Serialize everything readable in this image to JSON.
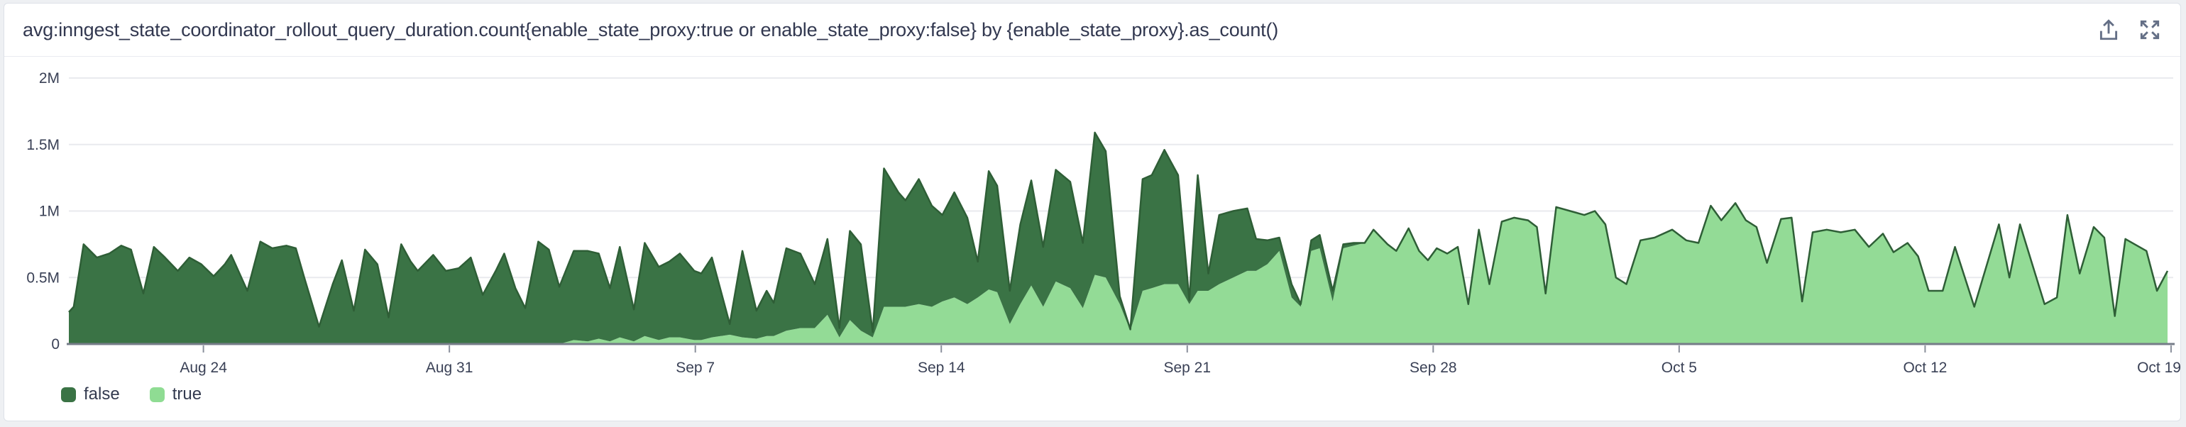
{
  "header": {
    "title": "avg:inngest_state_coordinator_rollout_query_duration.count{enable_state_proxy:true or enable_state_proxy:false} by {enable_state_proxy}.as_count()",
    "icons": [
      {
        "name": "export-icon"
      },
      {
        "name": "fullscreen-icon"
      }
    ]
  },
  "legend": {
    "items": [
      {
        "label": "false",
        "color": "#3a7345"
      },
      {
        "label": "true",
        "color": "#8fdc93"
      }
    ]
  },
  "chart_data": {
    "type": "area",
    "stacked": true,
    "title": "avg:inngest_state_coordinator_rollout_query_duration.count by enable_state_proxy",
    "xlabel": "",
    "ylabel": "",
    "x_unit": "date",
    "x_domain_days": [
      0.17,
      59.9
    ],
    "x_epoch_label": "day 0 = Aug 20",
    "x_ticks": {
      "days": [
        4,
        11,
        18,
        25,
        32,
        39,
        46,
        53,
        60
      ],
      "labels": [
        "Aug 24",
        "Aug 31",
        "Sep 7",
        "Sep 14",
        "Sep 21",
        "Sep 28",
        "Oct 5",
        "Oct 12",
        "Oct 19"
      ]
    },
    "ylim": [
      0,
      2000000
    ],
    "y_ticks": {
      "values": [
        0,
        500000,
        1000000,
        1500000,
        2000000
      ],
      "labels": [
        "0",
        "0.5M",
        "1M",
        "1.5M",
        "2M"
      ]
    },
    "grid": "horizontal",
    "legend_position": "bottom-left",
    "values_unit": "millions",
    "series_names": [
      "false",
      "true"
    ],
    "colors": {
      "false_fill": "#3a7345",
      "true_fill": "#93db96",
      "edge_stroke": "#2e5e36",
      "gridline": "#e9eaee",
      "axis_line": "#767c88",
      "axis_text": "#3a4156"
    },
    "points_format": "[day, false_value_M, true_value_M]",
    "points": [
      [
        0.17,
        0.24,
        0
      ],
      [
        0.31,
        0.28,
        0
      ],
      [
        0.59,
        0.75,
        0
      ],
      [
        0.97,
        0.65,
        0
      ],
      [
        1.32,
        0.68,
        0
      ],
      [
        1.66,
        0.74,
        0
      ],
      [
        1.94,
        0.71,
        0
      ],
      [
        2.29,
        0.38,
        0
      ],
      [
        2.59,
        0.73,
        0
      ],
      [
        2.87,
        0.66,
        0
      ],
      [
        3.27,
        0.55,
        0
      ],
      [
        3.6,
        0.65,
        0
      ],
      [
        3.94,
        0.6,
        0
      ],
      [
        4.29,
        0.51,
        0
      ],
      [
        4.61,
        0.6,
        0
      ],
      [
        4.79,
        0.67,
        0
      ],
      [
        5.25,
        0.4,
        0
      ],
      [
        5.62,
        0.77,
        0
      ],
      [
        5.96,
        0.72,
        0
      ],
      [
        6.36,
        0.74,
        0
      ],
      [
        6.63,
        0.72,
        0
      ],
      [
        6.87,
        0.5,
        0
      ],
      [
        7.29,
        0.13,
        0
      ],
      [
        7.68,
        0.45,
        0
      ],
      [
        7.94,
        0.63,
        0
      ],
      [
        8.28,
        0.25,
        0
      ],
      [
        8.6,
        0.71,
        0
      ],
      [
        8.95,
        0.6,
        0
      ],
      [
        9.27,
        0.2,
        0
      ],
      [
        9.63,
        0.75,
        0
      ],
      [
        9.9,
        0.62,
        0
      ],
      [
        10.1,
        0.55,
        0
      ],
      [
        10.54,
        0.67,
        0
      ],
      [
        10.9,
        0.55,
        0
      ],
      [
        11.27,
        0.57,
        0
      ],
      [
        11.61,
        0.65,
        0
      ],
      [
        11.95,
        0.37,
        0
      ],
      [
        12.32,
        0.55,
        0
      ],
      [
        12.56,
        0.68,
        0
      ],
      [
        12.88,
        0.42,
        0
      ],
      [
        13.16,
        0.27,
        0
      ],
      [
        13.53,
        0.77,
        0
      ],
      [
        13.83,
        0.71,
        0
      ],
      [
        14.13,
        0.43,
        0
      ],
      [
        14.54,
        0.67,
        0.03
      ],
      [
        14.94,
        0.68,
        0.02
      ],
      [
        15.25,
        0.64,
        0.04
      ],
      [
        15.57,
        0.4,
        0.02
      ],
      [
        15.85,
        0.68,
        0.05
      ],
      [
        16.25,
        0.24,
        0.02
      ],
      [
        16.56,
        0.7,
        0.06
      ],
      [
        16.96,
        0.55,
        0.03
      ],
      [
        17.26,
        0.57,
        0.05
      ],
      [
        17.56,
        0.63,
        0.05
      ],
      [
        17.97,
        0.52,
        0.03
      ],
      [
        18.17,
        0.5,
        0.03
      ],
      [
        18.47,
        0.6,
        0.05
      ],
      [
        18.98,
        0.08,
        0.07
      ],
      [
        19.34,
        0.65,
        0.05
      ],
      [
        19.74,
        0.21,
        0.04
      ],
      [
        20.03,
        0.34,
        0.06
      ],
      [
        20.23,
        0.25,
        0.06
      ],
      [
        20.59,
        0.62,
        0.1
      ],
      [
        20.99,
        0.56,
        0.12
      ],
      [
        21.4,
        0.33,
        0.12
      ],
      [
        21.76,
        0.57,
        0.22
      ],
      [
        22.1,
        0.07,
        0.05
      ],
      [
        22.4,
        0.67,
        0.18
      ],
      [
        22.71,
        0.65,
        0.1
      ],
      [
        23.05,
        0.04,
        0.05
      ],
      [
        23.37,
        1.04,
        0.28
      ],
      [
        23.78,
        0.86,
        0.28
      ],
      [
        23.98,
        0.8,
        0.28
      ],
      [
        24.36,
        0.94,
        0.3
      ],
      [
        24.73,
        0.76,
        0.28
      ],
      [
        25.03,
        0.65,
        0.32
      ],
      [
        25.37,
        0.79,
        0.35
      ],
      [
        25.74,
        0.65,
        0.3
      ],
      [
        26.04,
        0.27,
        0.35
      ],
      [
        26.35,
        0.89,
        0.41
      ],
      [
        26.59,
        0.8,
        0.39
      ],
      [
        26.95,
        0.25,
        0.15
      ],
      [
        27.25,
        0.6,
        0.3
      ],
      [
        27.56,
        0.79,
        0.44
      ],
      [
        27.9,
        0.45,
        0.28
      ],
      [
        28.26,
        0.84,
        0.47
      ],
      [
        28.67,
        0.8,
        0.42
      ],
      [
        29.03,
        0.49,
        0.27
      ],
      [
        29.37,
        1.07,
        0.52
      ],
      [
        29.68,
        0.95,
        0.5
      ],
      [
        30.08,
        0.06,
        0.3
      ],
      [
        30.38,
        0.01,
        0.1
      ],
      [
        30.73,
        0.84,
        0.4
      ],
      [
        30.99,
        0.85,
        0.42
      ],
      [
        31.35,
        1.01,
        0.45
      ],
      [
        31.74,
        0.82,
        0.45
      ],
      [
        32.06,
        0.03,
        0.3
      ],
      [
        32.3,
        0.87,
        0.4
      ],
      [
        32.6,
        0.13,
        0.4
      ],
      [
        32.91,
        0.52,
        0.45
      ],
      [
        33.31,
        0.5,
        0.5
      ],
      [
        33.71,
        0.47,
        0.55
      ],
      [
        33.96,
        0.24,
        0.55
      ],
      [
        34.28,
        0.18,
        0.6
      ],
      [
        34.62,
        0.1,
        0.7
      ],
      [
        34.97,
        0.1,
        0.35
      ],
      [
        35.23,
        0.02,
        0.28
      ],
      [
        35.53,
        0.08,
        0.7
      ],
      [
        35.77,
        0.1,
        0.72
      ],
      [
        36.14,
        0.08,
        0.32
      ],
      [
        36.44,
        0.03,
        0.72
      ],
      [
        36.74,
        0.02,
        0.74
      ],
      [
        37.05,
        0,
        0.76
      ],
      [
        37.3,
        0,
        0.86
      ],
      [
        37.7,
        0,
        0.75
      ],
      [
        37.95,
        0,
        0.7
      ],
      [
        38.3,
        0,
        0.87
      ],
      [
        38.6,
        0,
        0.7
      ],
      [
        38.85,
        0,
        0.63
      ],
      [
        39.1,
        0,
        0.72
      ],
      [
        39.4,
        0,
        0.68
      ],
      [
        39.7,
        0,
        0.73
      ],
      [
        40,
        0,
        0.3
      ],
      [
        40.3,
        0,
        0.86
      ],
      [
        40.6,
        0,
        0.45
      ],
      [
        40.95,
        0,
        0.92
      ],
      [
        41.3,
        0,
        0.95
      ],
      [
        41.7,
        0,
        0.93
      ],
      [
        41.95,
        0,
        0.88
      ],
      [
        42.2,
        0,
        0.38
      ],
      [
        42.5,
        0,
        1.03
      ],
      [
        42.9,
        0,
        1
      ],
      [
        43.3,
        0,
        0.97
      ],
      [
        43.6,
        0,
        1
      ],
      [
        43.9,
        0,
        0.9
      ],
      [
        44.2,
        0,
        0.5
      ],
      [
        44.5,
        0,
        0.45
      ],
      [
        44.9,
        0,
        0.78
      ],
      [
        45.3,
        0,
        0.8
      ],
      [
        45.8,
        0,
        0.86
      ],
      [
        46.2,
        0,
        0.78
      ],
      [
        46.55,
        0,
        0.76
      ],
      [
        46.9,
        0,
        1.04
      ],
      [
        47.2,
        0,
        0.93
      ],
      [
        47.6,
        0,
        1.06
      ],
      [
        47.9,
        0,
        0.93
      ],
      [
        48.2,
        0,
        0.88
      ],
      [
        48.5,
        0,
        0.61
      ],
      [
        48.9,
        0,
        0.94
      ],
      [
        49.2,
        0,
        0.95
      ],
      [
        49.5,
        0,
        0.32
      ],
      [
        49.8,
        0,
        0.84
      ],
      [
        50.2,
        0,
        0.86
      ],
      [
        50.6,
        0,
        0.84
      ],
      [
        51,
        0,
        0.86
      ],
      [
        51.4,
        0,
        0.73
      ],
      [
        51.8,
        0,
        0.83
      ],
      [
        52.1,
        0,
        0.69
      ],
      [
        52.5,
        0,
        0.76
      ],
      [
        52.8,
        0,
        0.66
      ],
      [
        53.1,
        0,
        0.4
      ],
      [
        53.5,
        0,
        0.4
      ],
      [
        53.85,
        0,
        0.73
      ],
      [
        54.4,
        0,
        0.28
      ],
      [
        55.1,
        0,
        0.9
      ],
      [
        55.4,
        0,
        0.5
      ],
      [
        55.7,
        0,
        0.9
      ],
      [
        56.4,
        0,
        0.3
      ],
      [
        56.75,
        0,
        0.35
      ],
      [
        57.05,
        0,
        0.97
      ],
      [
        57.4,
        0,
        0.53
      ],
      [
        57.8,
        0,
        0.88
      ],
      [
        58.1,
        0,
        0.8
      ],
      [
        58.4,
        0,
        0.21
      ],
      [
        58.7,
        0,
        0.79
      ],
      [
        59.3,
        0,
        0.7
      ],
      [
        59.6,
        0,
        0.4
      ],
      [
        59.9,
        0,
        0.55
      ]
    ]
  }
}
